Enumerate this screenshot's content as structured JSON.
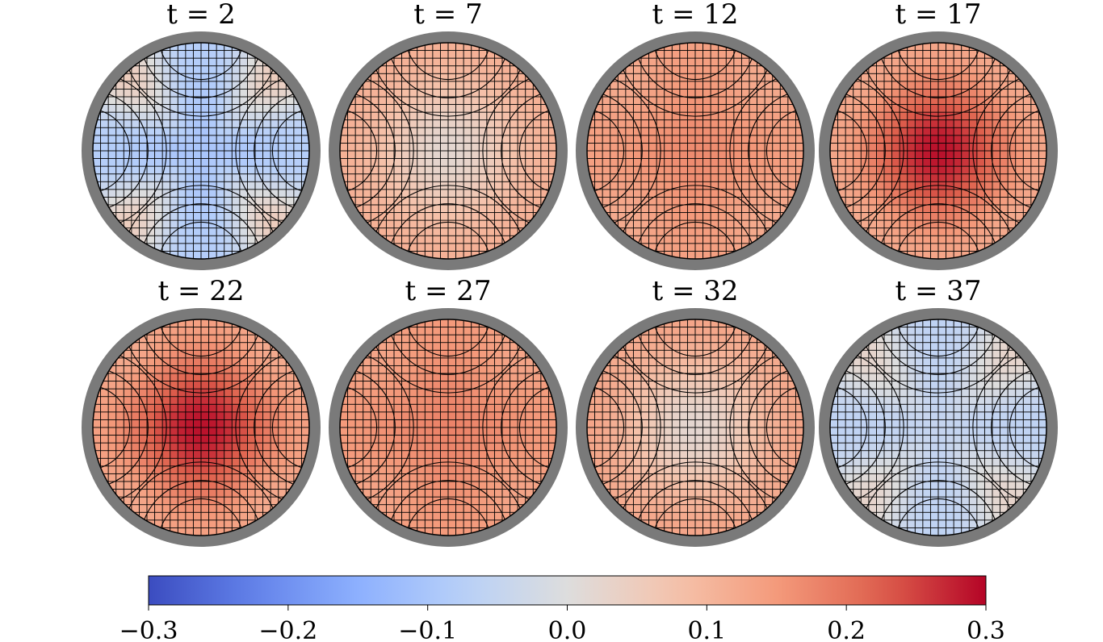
{
  "chart_data": {
    "type": "heatmap",
    "description_type": "small-multiples of a circular meshed field colored by value",
    "panels": [
      {
        "title": "t = 2",
        "center_value": -0.1,
        "edge_value": -0.08,
        "corner_value": 0.05
      },
      {
        "title": "t = 7",
        "center_value": 0.02,
        "edge_value": 0.11,
        "corner_value": 0.11
      },
      {
        "title": "t = 12",
        "center_value": 0.17,
        "edge_value": 0.14,
        "corner_value": 0.12
      },
      {
        "title": "t = 17",
        "center_value": 0.29,
        "edge_value": 0.13,
        "corner_value": 0.12
      },
      {
        "title": "t = 22",
        "center_value": 0.29,
        "edge_value": 0.14,
        "corner_value": 0.12
      },
      {
        "title": "t = 27",
        "center_value": 0.18,
        "edge_value": 0.15,
        "corner_value": 0.13
      },
      {
        "title": "t = 32",
        "center_value": 0.02,
        "edge_value": 0.13,
        "corner_value": 0.12
      },
      {
        "title": "t = 37",
        "center_value": -0.05,
        "edge_value": -0.06,
        "corner_value": 0.03
      }
    ],
    "colorbar": {
      "colormap": "coolwarm",
      "range": [
        -0.3,
        0.3
      ],
      "ticks": [
        "−0.3",
        "−0.2",
        "−0.1",
        "0.0",
        "0.1",
        "0.2",
        "0.3"
      ],
      "orientation": "horizontal"
    },
    "colors": {
      "wall": "#7a7a7a",
      "mesh_line": "#000000"
    }
  }
}
